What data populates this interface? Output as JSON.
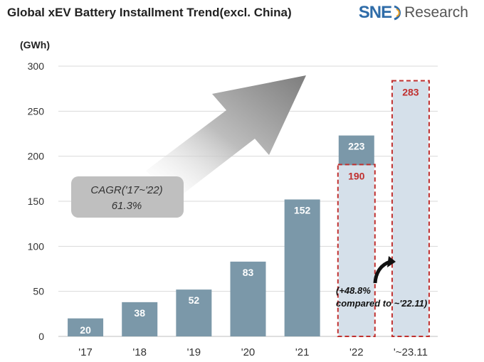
{
  "header": {
    "title": "Global xEV Battery Installment Trend(excl. China)",
    "logo_brand": "SNE",
    "logo_suffix": "Research"
  },
  "annotations": {
    "cagr_line1": "CAGR('17~'22)",
    "cagr_line2": "61.3%",
    "growth_line1": "(+48.8%",
    "growth_line2": "compared to ~'22.11)"
  },
  "colors": {
    "bar": "#7b98a9",
    "highlight_fill": "#d5e0ea",
    "dashed_box": "#c0302f",
    "highlight_label": "#c0302f",
    "arrow": "#8c8c8c"
  },
  "chart_data": {
    "type": "bar",
    "title": "Global xEV Battery Installment Trend(excl. China)",
    "ylabel": "(GWh)",
    "ylim": [
      0,
      300
    ],
    "yticks": [
      0,
      50,
      100,
      150,
      200,
      250,
      300
    ],
    "grid": true,
    "categories": [
      "'17",
      "'18",
      "'19",
      "'20",
      "'21",
      "'22",
      "'~23.11"
    ],
    "series": [
      {
        "values": [
          20,
          38,
          52,
          83,
          152,
          223,
          283
        ]
      }
    ],
    "highlight": [
      {
        "category": "'22",
        "value": 190,
        "label": "190"
      },
      {
        "category": "'~23.11",
        "value": 283,
        "label": "283"
      }
    ]
  }
}
